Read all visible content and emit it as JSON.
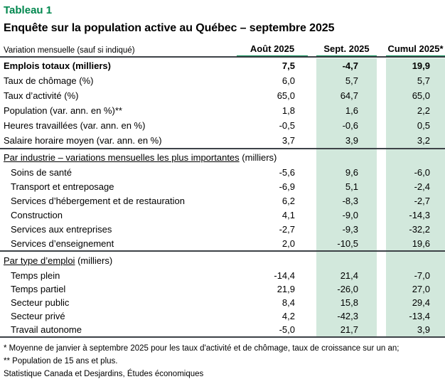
{
  "colors": {
    "accent_green": "#00874e",
    "highlight_band": "#d2e8dc",
    "rule_dark": "#3d4247"
  },
  "header": {
    "tableau_label": "Tableau 1",
    "title": "Enquête sur la population active au Québec – septembre 2025"
  },
  "table": {
    "dimension_label": "Variation mensuelle (sauf si indiqué)",
    "columns": [
      "Août 2025",
      "Sept. 2025",
      "Cumul 2025*"
    ],
    "sections": [
      {
        "rows": [
          {
            "label": "Emplois totaux (milliers)",
            "values": [
              "7,5",
              "-4,7",
              "19,9"
            ],
            "bold": true
          },
          {
            "label": "Taux de chômage (%)",
            "values": [
              "6,0",
              "5,7",
              "5,7"
            ]
          },
          {
            "label": "Taux d’activité (%)",
            "values": [
              "65,0",
              "64,7",
              "65,0"
            ]
          },
          {
            "label": "Population (var. ann. en %)**",
            "values": [
              "1,8",
              "1,6",
              "2,2"
            ]
          },
          {
            "label": "Heures travaillées (var. ann. en %)",
            "values": [
              "-0,5",
              "-0,6",
              "0,5"
            ]
          },
          {
            "label": "Salaire horaire moyen (var. ann. en %)",
            "values": [
              "3,7",
              "3,9",
              "3,2"
            ]
          }
        ]
      },
      {
        "header": {
          "underlined": "Par industrie – variations mensuelles les plus importantes",
          "suffix": " (milliers)"
        },
        "rows": [
          {
            "label": "Soins de santé",
            "values": [
              "-5,6",
              "9,6",
              "-6,0"
            ],
            "indent": true
          },
          {
            "label": "Transport et entreposage",
            "values": [
              "-6,9",
              "5,1",
              "-2,4"
            ],
            "indent": true
          },
          {
            "label": "Services d’hébergement et de restauration",
            "values": [
              "6,2",
              "-8,3",
              "-2,7"
            ],
            "indent": true
          },
          {
            "label": "Construction",
            "values": [
              "4,1",
              "-9,0",
              "-14,3"
            ],
            "indent": true
          },
          {
            "label": "Services aux entreprises",
            "values": [
              "-2,7",
              "-9,3",
              "-32,2"
            ],
            "indent": true
          },
          {
            "label": "Services d’enseignement",
            "values": [
              "2,0",
              "-10,5",
              "19,6"
            ],
            "indent": true
          }
        ]
      },
      {
        "header": {
          "underlined": "Par type d’emploi",
          "suffix": " (milliers)"
        },
        "rows": [
          {
            "label": "Temps plein",
            "values": [
              "-14,4",
              "21,4",
              "-7,0"
            ],
            "indent": true
          },
          {
            "label": "Temps partiel",
            "values": [
              "21,9",
              "-26,0",
              "27,0"
            ],
            "indent": true
          },
          {
            "label": "Secteur public",
            "values": [
              "8,4",
              "15,8",
              "29,4"
            ],
            "indent": true
          },
          {
            "label": "Secteur privé",
            "values": [
              "4,2",
              "-42,3",
              "-13,4"
            ],
            "indent": true
          },
          {
            "label": "Travail autonome",
            "values": [
              "-5,0",
              "21,7",
              "3,9"
            ],
            "indent": true
          }
        ]
      }
    ]
  },
  "footnotes": {
    "note1": "* Moyenne de janvier à septembre 2025 pour les taux d'activité et de chômage, taux de croissance sur un an;",
    "note2": "** Population de 15 ans et plus.",
    "source": "Statistique Canada et Desjardins, Études économiques"
  }
}
